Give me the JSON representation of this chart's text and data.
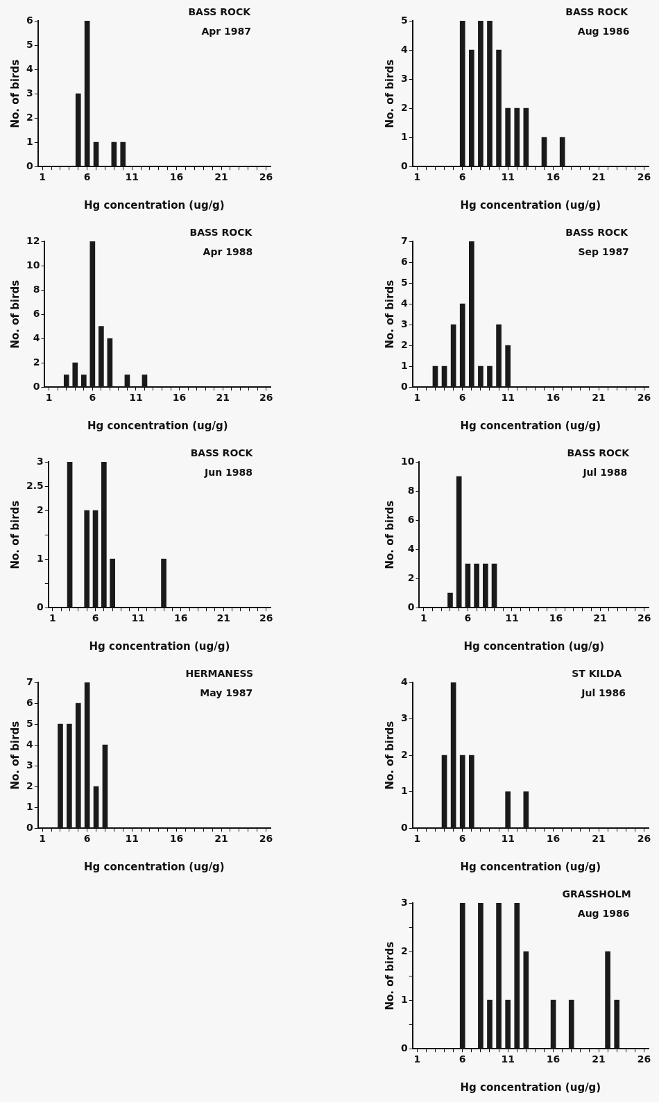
{
  "chart_data": [
    {
      "type": "bar",
      "title": "BASS ROCK",
      "subtitle": "Apr 1987",
      "xlabel": "Hg concentration (ug/g)",
      "ylabel": "No. of birds",
      "color": "#1a1a1a",
      "x": [
        5,
        6,
        7,
        9,
        10
      ],
      "values": [
        3,
        6,
        1,
        1,
        1
      ],
      "xlim": [
        0.5,
        26.5
      ],
      "xticks": [
        1,
        {
          "value": 2,
          "label": null
        },
        {
          "value": 3,
          "label": null
        },
        {
          "value": 4,
          "label": null
        },
        {
          "value": 5,
          "label": null
        },
        6,
        {
          "value": 7,
          "label": null
        },
        {
          "value": 8,
          "label": null
        },
        {
          "value": 9,
          "label": null
        },
        {
          "value": 10,
          "label": null
        },
        11,
        {
          "value": 12,
          "label": null
        },
        {
          "value": 13,
          "label": null
        },
        {
          "value": 14,
          "label": null
        },
        {
          "value": 15,
          "label": null
        },
        16,
        {
          "value": 17,
          "label": null
        },
        {
          "value": 18,
          "label": null
        },
        {
          "value": 19,
          "label": null
        },
        {
          "value": 20,
          "label": null
        },
        21,
        {
          "value": 22,
          "label": null
        },
        {
          "value": 23,
          "label": null
        },
        {
          "value": 24,
          "label": null
        },
        {
          "value": 25,
          "label": null
        },
        26
      ],
      "ylim": [
        0,
        6
      ],
      "yticks": [
        0,
        1,
        2,
        3,
        4,
        5,
        6
      ],
      "grid": false
    },
    {
      "type": "bar",
      "title": "BASS ROCK",
      "subtitle": "Aug 1986",
      "xlabel": "Hg concentration (ug/g)",
      "ylabel": "No. of birds",
      "color": "#1a1a1a",
      "x": [
        6,
        7,
        8,
        9,
        10,
        11,
        12,
        13,
        15,
        17
      ],
      "values": [
        5,
        4,
        5,
        5,
        4,
        2,
        2,
        2,
        1,
        1
      ],
      "xlim": [
        0.5,
        26.5
      ],
      "xticks": [
        1,
        {
          "value": 2,
          "label": null
        },
        {
          "value": 3,
          "label": null
        },
        {
          "value": 4,
          "label": null
        },
        {
          "value": 5,
          "label": null
        },
        6,
        {
          "value": 7,
          "label": null
        },
        {
          "value": 8,
          "label": null
        },
        {
          "value": 9,
          "label": null
        },
        {
          "value": 10,
          "label": null
        },
        11,
        {
          "value": 12,
          "label": null
        },
        {
          "value": 13,
          "label": null
        },
        {
          "value": 14,
          "label": null
        },
        {
          "value": 15,
          "label": null
        },
        16,
        {
          "value": 17,
          "label": null
        },
        {
          "value": 18,
          "label": null
        },
        {
          "value": 19,
          "label": null
        },
        {
          "value": 20,
          "label": null
        },
        21,
        {
          "value": 22,
          "label": null
        },
        {
          "value": 23,
          "label": null
        },
        {
          "value": 24,
          "label": null
        },
        {
          "value": 25,
          "label": null
        },
        26
      ],
      "ylim": [
        0,
        5
      ],
      "yticks": [
        0,
        1,
        2,
        3,
        4,
        5
      ],
      "grid": false
    },
    {
      "type": "bar",
      "title": "BASS ROCK",
      "subtitle": "Apr 1988",
      "xlabel": "Hg concentration (ug/g)",
      "ylabel": "No. of birds",
      "color": "#1a1a1a",
      "x": [
        3,
        4,
        5,
        6,
        7,
        8,
        10,
        12
      ],
      "values": [
        1,
        2,
        1,
        12,
        5,
        4,
        1,
        1
      ],
      "xlim": [
        0.5,
        26.5
      ],
      "xticks": [
        1,
        {
          "value": 2,
          "label": null
        },
        {
          "value": 3,
          "label": null
        },
        {
          "value": 4,
          "label": null
        },
        {
          "value": 5,
          "label": null
        },
        6,
        {
          "value": 7,
          "label": null
        },
        {
          "value": 8,
          "label": null
        },
        {
          "value": 9,
          "label": null
        },
        {
          "value": 10,
          "label": null
        },
        11,
        {
          "value": 12,
          "label": null
        },
        {
          "value": 13,
          "label": null
        },
        {
          "value": 14,
          "label": null
        },
        {
          "value": 15,
          "label": null
        },
        16,
        {
          "value": 17,
          "label": null
        },
        {
          "value": 18,
          "label": null
        },
        {
          "value": 19,
          "label": null
        },
        {
          "value": 20,
          "label": null
        },
        21,
        {
          "value": 22,
          "label": null
        },
        {
          "value": 23,
          "label": null
        },
        {
          "value": 24,
          "label": null
        },
        {
          "value": 25,
          "label": null
        },
        26
      ],
      "ylim": [
        0,
        12
      ],
      "yticks": [
        0,
        2,
        4,
        6,
        8,
        10,
        12
      ],
      "grid": false
    },
    {
      "type": "bar",
      "title": "BASS ROCK",
      "subtitle": "Sep 1987",
      "xlabel": "Hg concentration (ug/g)",
      "ylabel": "No. of birds",
      "color": "#1a1a1a",
      "x": [
        3,
        4,
        5,
        6,
        7,
        8,
        9,
        10,
        11
      ],
      "values": [
        1,
        1,
        3,
        4,
        7,
        1,
        1,
        3,
        2
      ],
      "xlim": [
        0.5,
        26.5
      ],
      "xticks": [
        1,
        {
          "value": 2,
          "label": null
        },
        {
          "value": 3,
          "label": null
        },
        {
          "value": 4,
          "label": null
        },
        {
          "value": 5,
          "label": null
        },
        6,
        {
          "value": 7,
          "label": null
        },
        {
          "value": 8,
          "label": null
        },
        {
          "value": 9,
          "label": null
        },
        {
          "value": 10,
          "label": null
        },
        11,
        {
          "value": 12,
          "label": null
        },
        {
          "value": 13,
          "label": null
        },
        {
          "value": 14,
          "label": null
        },
        {
          "value": 15,
          "label": null
        },
        16,
        {
          "value": 17,
          "label": null
        },
        {
          "value": 18,
          "label": null
        },
        {
          "value": 19,
          "label": null
        },
        {
          "value": 20,
          "label": null
        },
        21,
        {
          "value": 22,
          "label": null
        },
        {
          "value": 23,
          "label": null
        },
        {
          "value": 24,
          "label": null
        },
        {
          "value": 25,
          "label": null
        },
        26
      ],
      "ylim": [
        0,
        7
      ],
      "yticks": [
        0,
        1,
        2,
        3,
        4,
        5,
        6,
        7
      ],
      "grid": false
    },
    {
      "type": "bar",
      "title": "BASS ROCK",
      "subtitle": "Jun 1988",
      "xlabel": "Hg concentration (ug/g)",
      "ylabel": "No. of birds",
      "color": "#1a1a1a",
      "x": [
        3,
        5,
        6,
        7,
        8,
        14
      ],
      "values": [
        3,
        2,
        2,
        3,
        1,
        1
      ],
      "xlim": [
        0.5,
        26.5
      ],
      "xticks": [
        1,
        {
          "value": 2,
          "label": null
        },
        {
          "value": 3,
          "label": null
        },
        {
          "value": 4,
          "label": null
        },
        {
          "value": 5,
          "label": null
        },
        6,
        {
          "value": 7,
          "label": null
        },
        {
          "value": 8,
          "label": null
        },
        {
          "value": 9,
          "label": null
        },
        {
          "value": 10,
          "label": null
        },
        11,
        {
          "value": 12,
          "label": null
        },
        {
          "value": 13,
          "label": null
        },
        {
          "value": 14,
          "label": null
        },
        {
          "value": 15,
          "label": null
        },
        16,
        {
          "value": 17,
          "label": null
        },
        {
          "value": 18,
          "label": null
        },
        {
          "value": 19,
          "label": null
        },
        {
          "value": 20,
          "label": null
        },
        21,
        {
          "value": 22,
          "label": null
        },
        {
          "value": 23,
          "label": null
        },
        {
          "value": 24,
          "label": null
        },
        {
          "value": 25,
          "label": null
        },
        26
      ],
      "ylim": [
        0,
        3
      ],
      "yticks": [
        0,
        {
          "value": 0.5,
          "label": null
        },
        1,
        {
          "value": 1.5,
          "label": null
        },
        2,
        2.5,
        3
      ],
      "grid": false
    },
    {
      "type": "bar",
      "title": "BASS ROCK",
      "subtitle": "Jul 1988",
      "xlabel": "Hg concentration (ug/g)",
      "ylabel": "No. of birds",
      "color": "#1a1a1a",
      "x": [
        4,
        5,
        6,
        7,
        8,
        9
      ],
      "values": [
        1,
        9,
        3,
        3,
        3,
        3
      ],
      "xlim": [
        0.5,
        26.5
      ],
      "xticks": [
        1,
        {
          "value": 2,
          "label": null
        },
        {
          "value": 3,
          "label": null
        },
        {
          "value": 4,
          "label": null
        },
        {
          "value": 5,
          "label": null
        },
        6,
        {
          "value": 7,
          "label": null
        },
        {
          "value": 8,
          "label": null
        },
        {
          "value": 9,
          "label": null
        },
        {
          "value": 10,
          "label": null
        },
        11,
        {
          "value": 12,
          "label": null
        },
        {
          "value": 13,
          "label": null
        },
        {
          "value": 14,
          "label": null
        },
        {
          "value": 15,
          "label": null
        },
        16,
        {
          "value": 17,
          "label": null
        },
        {
          "value": 18,
          "label": null
        },
        {
          "value": 19,
          "label": null
        },
        {
          "value": 20,
          "label": null
        },
        21,
        {
          "value": 22,
          "label": null
        },
        {
          "value": 23,
          "label": null
        },
        {
          "value": 24,
          "label": null
        },
        {
          "value": 25,
          "label": null
        },
        26
      ],
      "ylim": [
        0,
        10
      ],
      "yticks": [
        0,
        2,
        4,
        6,
        8,
        10
      ],
      "grid": false
    },
    {
      "type": "bar",
      "title": "HERMANESS",
      "subtitle": "May 1987",
      "xlabel": "Hg concentration (ug/g)",
      "ylabel": "No. of birds",
      "color": "#1a1a1a",
      "x": [
        3,
        4,
        5,
        6,
        7,
        8
      ],
      "values": [
        5,
        5,
        6,
        7,
        2,
        4
      ],
      "xlim": [
        0.5,
        26.5
      ],
      "xticks": [
        1,
        {
          "value": 2,
          "label": null
        },
        {
          "value": 3,
          "label": null
        },
        {
          "value": 4,
          "label": null
        },
        {
          "value": 5,
          "label": null
        },
        6,
        {
          "value": 7,
          "label": null
        },
        {
          "value": 8,
          "label": null
        },
        {
          "value": 9,
          "label": null
        },
        {
          "value": 10,
          "label": null
        },
        11,
        {
          "value": 12,
          "label": null
        },
        {
          "value": 13,
          "label": null
        },
        {
          "value": 14,
          "label": null
        },
        {
          "value": 15,
          "label": null
        },
        16,
        {
          "value": 17,
          "label": null
        },
        {
          "value": 18,
          "label": null
        },
        {
          "value": 19,
          "label": null
        },
        {
          "value": 20,
          "label": null
        },
        21,
        {
          "value": 22,
          "label": null
        },
        {
          "value": 23,
          "label": null
        },
        {
          "value": 24,
          "label": null
        },
        {
          "value": 25,
          "label": null
        },
        26
      ],
      "ylim": [
        0,
        7
      ],
      "yticks": [
        0,
        1,
        2,
        3,
        4,
        5,
        6,
        7
      ],
      "grid": false
    },
    {
      "type": "bar",
      "title": "ST KILDA",
      "subtitle": "Jul 1986",
      "xlabel": "Hg concentration (ug/g)",
      "ylabel": "No. of birds",
      "color": "#1a1a1a",
      "x": [
        4,
        5,
        6,
        7,
        11,
        13
      ],
      "values": [
        2,
        4,
        2,
        2,
        1,
        1
      ],
      "xlim": [
        0.5,
        26.5
      ],
      "xticks": [
        1,
        {
          "value": 2,
          "label": null
        },
        {
          "value": 3,
          "label": null
        },
        {
          "value": 4,
          "label": null
        },
        {
          "value": 5,
          "label": null
        },
        6,
        {
          "value": 7,
          "label": null
        },
        {
          "value": 8,
          "label": null
        },
        {
          "value": 9,
          "label": null
        },
        {
          "value": 10,
          "label": null
        },
        11,
        {
          "value": 12,
          "label": null
        },
        {
          "value": 13,
          "label": null
        },
        {
          "value": 14,
          "label": null
        },
        {
          "value": 15,
          "label": null
        },
        16,
        {
          "value": 17,
          "label": null
        },
        {
          "value": 18,
          "label": null
        },
        {
          "value": 19,
          "label": null
        },
        {
          "value": 20,
          "label": null
        },
        21,
        {
          "value": 22,
          "label": null
        },
        {
          "value": 23,
          "label": null
        },
        {
          "value": 24,
          "label": null
        },
        {
          "value": 25,
          "label": null
        },
        26
      ],
      "ylim": [
        0,
        4
      ],
      "yticks": [
        0,
        1,
        2,
        3,
        4
      ],
      "grid": false
    },
    {
      "type": "bar",
      "title": "GRASSHOLM",
      "subtitle": "Aug 1986",
      "xlabel": "Hg concentration (ug/g)",
      "ylabel": "No. of birds",
      "color": "#1a1a1a",
      "x": [
        6,
        8,
        9,
        10,
        11,
        12,
        13,
        16,
        18,
        22,
        23
      ],
      "values": [
        3,
        3,
        1,
        3,
        1,
        3,
        2,
        1,
        1,
        2,
        1
      ],
      "xlim": [
        0.5,
        26.5
      ],
      "xticks": [
        1,
        {
          "value": 2,
          "label": null
        },
        {
          "value": 3,
          "label": null
        },
        {
          "value": 4,
          "label": null
        },
        {
          "value": 5,
          "label": null
        },
        6,
        {
          "value": 7,
          "label": null
        },
        {
          "value": 8,
          "label": null
        },
        {
          "value": 9,
          "label": null
        },
        {
          "value": 10,
          "label": null
        },
        11,
        {
          "value": 12,
          "label": null
        },
        {
          "value": 13,
          "label": null
        },
        {
          "value": 14,
          "label": null
        },
        {
          "value": 15,
          "label": null
        },
        16,
        {
          "value": 17,
          "label": null
        },
        {
          "value": 18,
          "label": null
        },
        {
          "value": 19,
          "label": null
        },
        {
          "value": 20,
          "label": null
        },
        21,
        {
          "value": 22,
          "label": null
        },
        {
          "value": 23,
          "label": null
        },
        {
          "value": 24,
          "label": null
        },
        {
          "value": 25,
          "label": null
        },
        26
      ],
      "ylim": [
        0,
        3
      ],
      "yticks": [
        0,
        {
          "value": 0.5,
          "label": null
        },
        1,
        {
          "value": 1.5,
          "label": null
        },
        2,
        {
          "value": 2.5,
          "label": null
        },
        3
      ],
      "grid": false
    }
  ]
}
